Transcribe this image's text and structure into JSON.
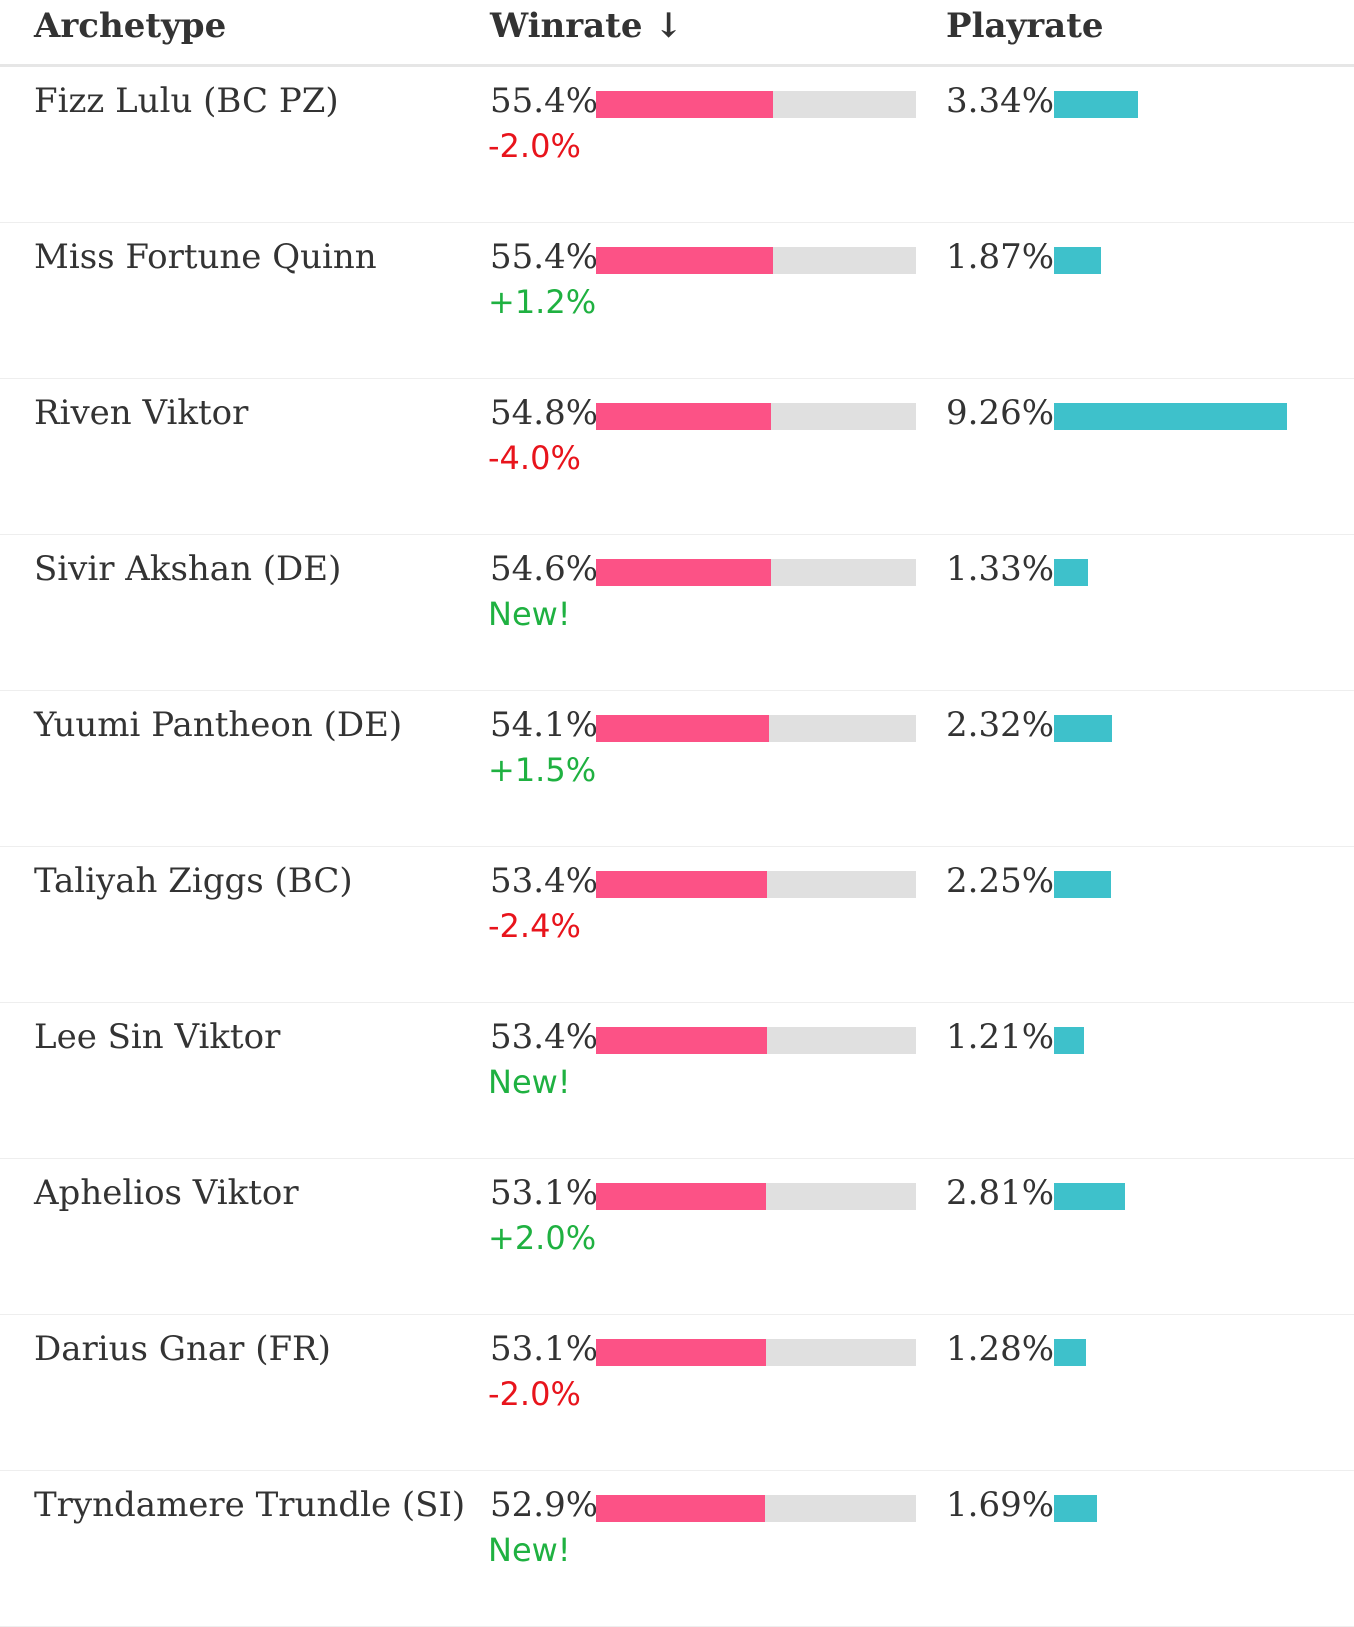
{
  "header": {
    "archetype": "Archetype",
    "winrate": "Winrate ↓",
    "playrate": "Playrate"
  },
  "colors": {
    "winrate_bar": "#fc5286",
    "winrate_track": "#e0e0e0",
    "playrate_bar": "#3ec1cb",
    "positive": "#1fb141",
    "negative": "#e8141c"
  },
  "rows": [
    {
      "name": "Fizz Lulu (BC PZ)",
      "winrate": "55.4%",
      "winrate_value": 55.4,
      "delta": "-2.0%",
      "delta_type": "negative",
      "playrate": "3.34%",
      "playrate_value": 3.34
    },
    {
      "name": "Miss Fortune Quinn",
      "winrate": "55.4%",
      "winrate_value": 55.4,
      "delta": "+1.2%",
      "delta_type": "positive",
      "playrate": "1.87%",
      "playrate_value": 1.87
    },
    {
      "name": "Riven Viktor",
      "winrate": "54.8%",
      "winrate_value": 54.8,
      "delta": "-4.0%",
      "delta_type": "negative",
      "playrate": "9.26%",
      "playrate_value": 9.26
    },
    {
      "name": "Sivir Akshan (DE)",
      "winrate": "54.6%",
      "winrate_value": 54.6,
      "delta": "New!",
      "delta_type": "positive",
      "playrate": "1.33%",
      "playrate_value": 1.33
    },
    {
      "name": "Yuumi Pantheon (DE)",
      "winrate": "54.1%",
      "winrate_value": 54.1,
      "delta": "+1.5%",
      "delta_type": "positive",
      "playrate": "2.32%",
      "playrate_value": 2.32
    },
    {
      "name": "Taliyah Ziggs (BC)",
      "winrate": "53.4%",
      "winrate_value": 53.4,
      "delta": "-2.4%",
      "delta_type": "negative",
      "playrate": "2.25%",
      "playrate_value": 2.25
    },
    {
      "name": "Lee Sin Viktor",
      "winrate": "53.4%",
      "winrate_value": 53.4,
      "delta": "New!",
      "delta_type": "positive",
      "playrate": "1.21%",
      "playrate_value": 1.21
    },
    {
      "name": "Aphelios Viktor",
      "winrate": "53.1%",
      "winrate_value": 53.1,
      "delta": "+2.0%",
      "delta_type": "positive",
      "playrate": "2.81%",
      "playrate_value": 2.81
    },
    {
      "name": "Darius Gnar (FR)",
      "winrate": "53.1%",
      "winrate_value": 53.1,
      "delta": "-2.0%",
      "delta_type": "negative",
      "playrate": "1.28%",
      "playrate_value": 1.28
    },
    {
      "name": "Tryndamere Trundle (SI)",
      "winrate": "52.9%",
      "winrate_value": 52.9,
      "delta": "New!",
      "delta_type": "positive",
      "playrate": "1.69%",
      "playrate_value": 1.69
    }
  ]
}
